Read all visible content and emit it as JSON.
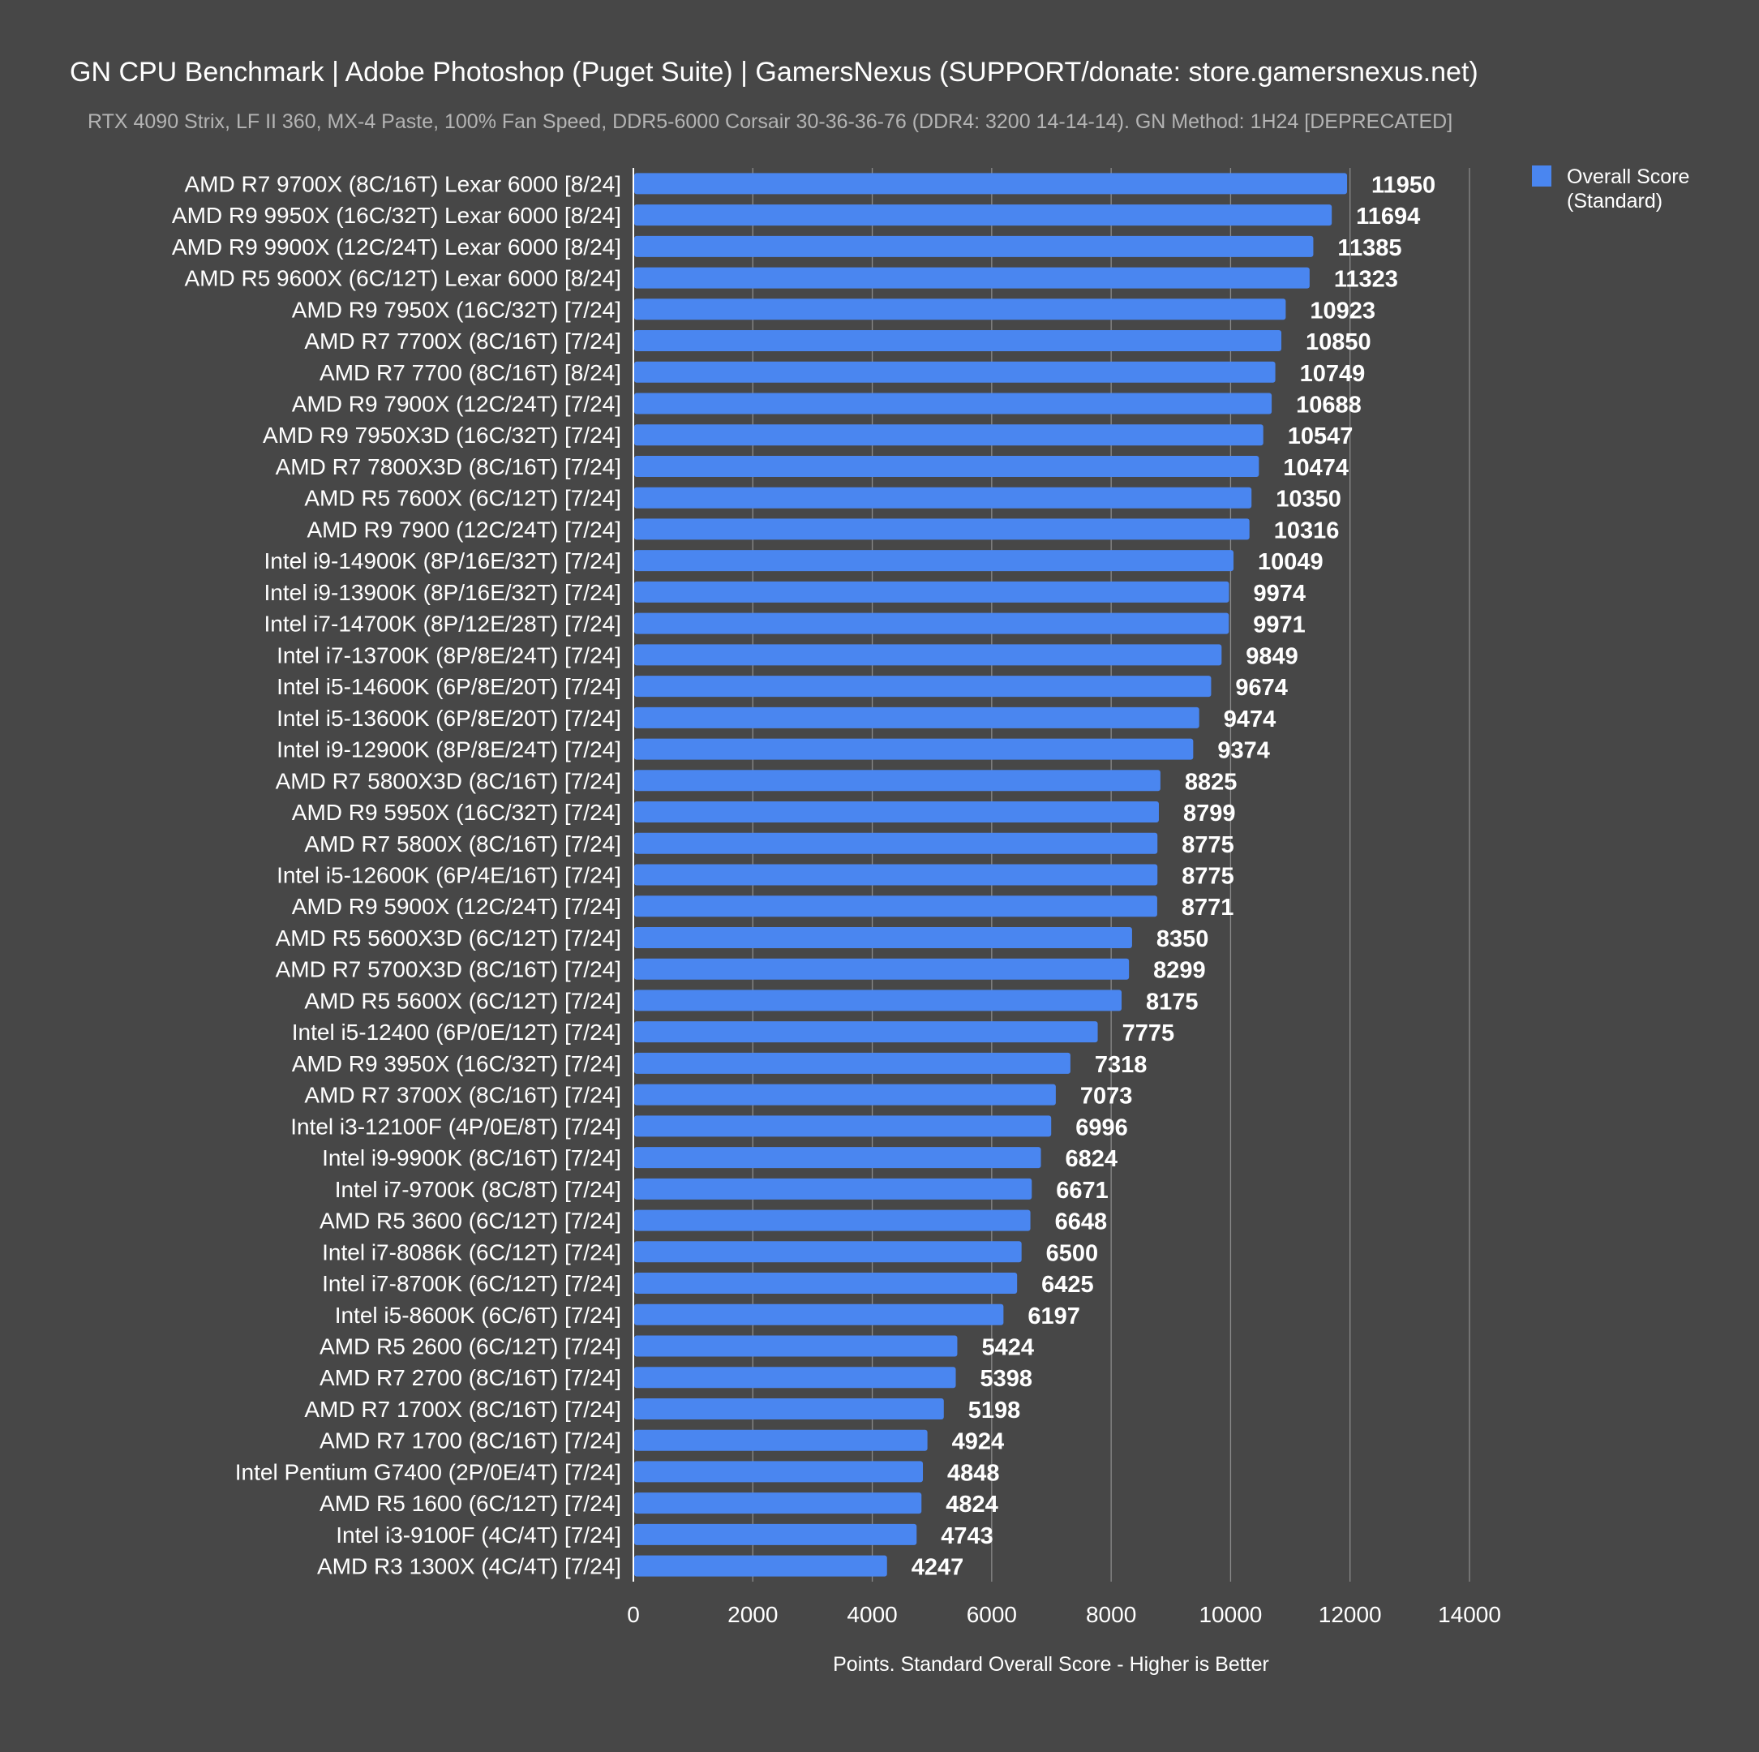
{
  "chart_data": {
    "type": "bar",
    "orientation": "horizontal",
    "title": "GN CPU Benchmark | Adobe Photoshop (Puget Suite) | GamersNexus (SUPPORT/donate: store.gamersnexus.net)",
    "subtitle": "RTX 4090 Strix, LF II 360, MX-4 Paste, 100% Fan Speed, DDR5-6000 Corsair 30-36-36-76 (DDR4: 3200 14-14-14). GN Method: 1H24 [DEPRECATED]",
    "xlabel": "Points. Standard Overall Score - Higher is Better",
    "ylabel": "",
    "xlim": [
      0,
      14000
    ],
    "xticks": [
      0,
      2000,
      4000,
      6000,
      8000,
      10000,
      12000,
      14000
    ],
    "grid": true,
    "legend_position": "top-right",
    "bar_color": "#4a86f0",
    "background": "#474747",
    "categories": [
      "AMD R7 9700X (8C/16T) Lexar 6000 [8/24]",
      "AMD R9 9950X (16C/32T) Lexar 6000 [8/24]",
      "AMD R9 9900X (12C/24T) Lexar 6000 [8/24]",
      "AMD R5 9600X (6C/12T) Lexar 6000 [8/24]",
      "AMD R9 7950X (16C/32T) [7/24]",
      "AMD R7 7700X (8C/16T) [7/24]",
      "AMD R7 7700 (8C/16T) [8/24]",
      "AMD R9 7900X (12C/24T) [7/24]",
      "AMD R9 7950X3D (16C/32T) [7/24]",
      "AMD R7 7800X3D (8C/16T) [7/24]",
      "AMD R5 7600X (6C/12T) [7/24]",
      "AMD R9 7900 (12C/24T) [7/24]",
      "Intel i9-14900K (8P/16E/32T) [7/24]",
      "Intel i9-13900K (8P/16E/32T) [7/24]",
      "Intel i7-14700K (8P/12E/28T) [7/24]",
      "Intel i7-13700K (8P/8E/24T) [7/24]",
      "Intel i5-14600K (6P/8E/20T) [7/24]",
      "Intel i5-13600K (6P/8E/20T) [7/24]",
      "Intel i9-12900K (8P/8E/24T) [7/24]",
      "AMD R7 5800X3D (8C/16T) [7/24]",
      "AMD R9 5950X (16C/32T) [7/24]",
      "AMD R7 5800X (8C/16T) [7/24]",
      "Intel i5-12600K (6P/4E/16T) [7/24]",
      "AMD R9 5900X (12C/24T) [7/24]",
      "AMD R5 5600X3D (6C/12T) [7/24]",
      "AMD R7 5700X3D (8C/16T) [7/24]",
      "AMD R5 5600X (6C/12T) [7/24]",
      "Intel i5-12400 (6P/0E/12T) [7/24]",
      "AMD R9 3950X (16C/32T) [7/24]",
      "AMD R7 3700X (8C/16T) [7/24]",
      "Intel i3-12100F (4P/0E/8T) [7/24]",
      "Intel i9-9900K (8C/16T) [7/24]",
      "Intel i7-9700K (8C/8T) [7/24]",
      "AMD R5 3600 (6C/12T) [7/24]",
      "Intel i7-8086K (6C/12T) [7/24]",
      "Intel i7-8700K (6C/12T) [7/24]",
      "Intel i5-8600K (6C/6T) [7/24]",
      "AMD R5 2600 (6C/12T) [7/24]",
      "AMD R7 2700 (8C/16T) [7/24]",
      "AMD R7 1700X (8C/16T) [7/24]",
      "AMD R7 1700 (8C/16T) [7/24]",
      "Intel Pentium G7400 (2P/0E/4T) [7/24]",
      "AMD R5 1600 (6C/12T) [7/24]",
      "Intel i3-9100F (4C/4T) [7/24]",
      "AMD R3 1300X (4C/4T) [7/24]"
    ],
    "series": [
      {
        "name": "Overall Score (Standard)",
        "values": [
          11950,
          11694,
          11385,
          11323,
          10923,
          10850,
          10749,
          10688,
          10547,
          10474,
          10350,
          10316,
          10049,
          9974,
          9971,
          9849,
          9674,
          9474,
          9374,
          8825,
          8799,
          8775,
          8775,
          8771,
          8350,
          8299,
          8175,
          7775,
          7318,
          7073,
          6996,
          6824,
          6671,
          6648,
          6500,
          6425,
          6197,
          5424,
          5398,
          5198,
          4924,
          4848,
          4824,
          4743,
          4247
        ]
      }
    ],
    "legend": {
      "line1": "Overall Score",
      "line2": "(Standard)"
    }
  }
}
